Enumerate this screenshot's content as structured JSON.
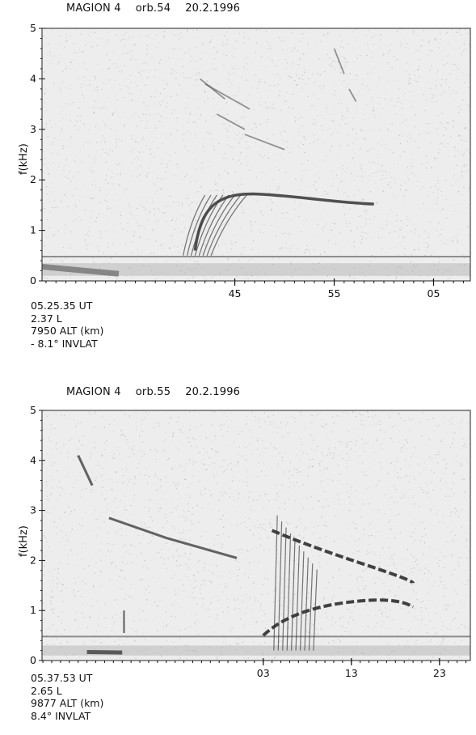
{
  "panels": [
    {
      "title": {
        "satellite": "MAGION 4",
        "orbit": "orb.54",
        "date": "20.2.1996"
      },
      "info": {
        "start_time": "05.25.35 UT",
        "l_shell": "2.37 L",
        "altitude": "7950 ALT (km)",
        "invlat": "- 8.1° INVLAT"
      }
    },
    {
      "title": {
        "satellite": "MAGION 4",
        "orbit": "orb.55",
        "date": "20.2.1996"
      },
      "info": {
        "start_time": "05.37.53 UT",
        "l_shell": "2.65 L",
        "altitude": "9877 ALT (km)",
        "invlat": "8.4° INVLAT"
      }
    }
  ],
  "chart_data": [
    {
      "type": "heatmap",
      "title": "MAGION 4    orb.54    20.2.1996",
      "ylabel": "f(kHz)",
      "xlabel": "",
      "ylim": [
        0,
        5
      ],
      "yticks": [
        0,
        1,
        2,
        3,
        4,
        5
      ],
      "x_tick_labels": [
        {
          "label": "45",
          "minute": 45
        },
        {
          "label": "55",
          "minute": 55
        },
        {
          "label": "05",
          "minute": 65
        }
      ],
      "xlim_minutes": [
        25.6,
        68.7
      ],
      "features": {
        "baseline_band_khz": 0.48,
        "low_band_khz": [
          0.1,
          0.35
        ],
        "whistler_band_khz": [
          1.75,
          1.5
        ],
        "upper_traces_khz": [
          4.2,
          3.0
        ]
      }
    },
    {
      "type": "heatmap",
      "title": "MAGION 4    orb.55    20.2.1996",
      "ylabel": "f(kHz)",
      "xlabel": "",
      "ylim": [
        0,
        5
      ],
      "yticks": [
        0,
        1,
        2,
        3,
        4,
        5
      ],
      "x_tick_labels": [
        {
          "label": "03",
          "minute": 63
        },
        {
          "label": "13",
          "minute": 73
        },
        {
          "label": "23",
          "minute": 83
        }
      ],
      "xlim_minutes": [
        37.9,
        86.5
      ],
      "features": {
        "baseline_band_khz": 0.48,
        "low_band_khz": [
          0.1,
          0.3
        ],
        "whistler_band_khz": [
          1.2,
          1.05
        ],
        "upper_traces_khz": [
          4.1,
          1.6
        ]
      }
    }
  ]
}
